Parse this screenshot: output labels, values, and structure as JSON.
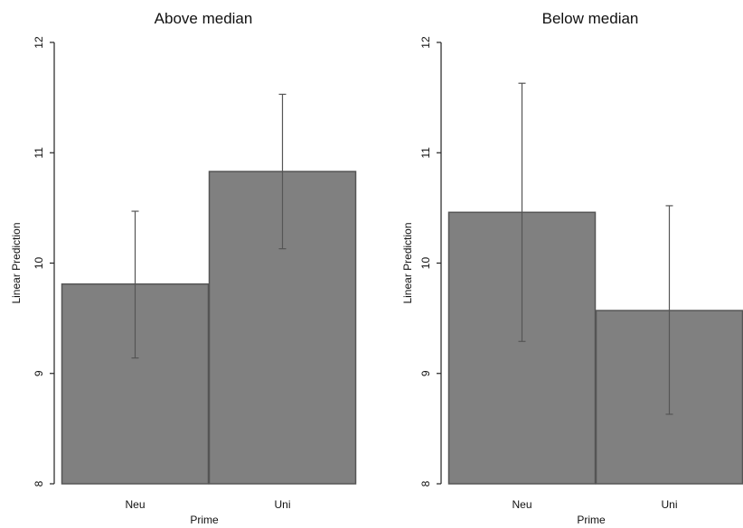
{
  "chart_data": [
    {
      "type": "bar",
      "title": "Above median",
      "xlabel": "Prime",
      "ylabel": "Linear Prediction",
      "ylim": [
        8,
        12
      ],
      "yticks": [
        "8",
        "9",
        "10",
        "11",
        "12"
      ],
      "categories": [
        "Neu",
        "Uni"
      ],
      "values": [
        9.81,
        10.83
      ],
      "error_low": [
        9.14,
        10.13
      ],
      "error_high": [
        10.47,
        11.53
      ],
      "bar_color": "#808080",
      "grid": false
    },
    {
      "type": "bar",
      "title": "Below median",
      "xlabel": "Prime",
      "ylabel": "Linear Prediction",
      "ylim": [
        8,
        12
      ],
      "yticks": [
        "8",
        "9",
        "10",
        "11",
        "12"
      ],
      "categories": [
        "Neu",
        "Uni"
      ],
      "values": [
        10.46,
        9.57
      ],
      "error_low": [
        9.29,
        8.63
      ],
      "error_high": [
        11.63,
        10.52
      ],
      "bar_color": "#808080",
      "grid": false
    }
  ]
}
